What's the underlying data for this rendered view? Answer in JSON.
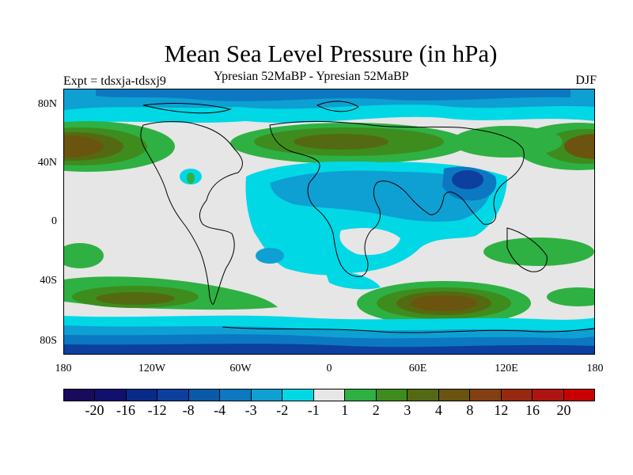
{
  "title": "Mean Sea Level Pressure (in hPa)",
  "subtitle": "Ypresian  52MaBP - Ypresian  52MaBP",
  "experiment": "Expt = tdsxja-tdsxj9",
  "season": "DJF",
  "lat_labels": [
    "80N",
    "40N",
    "0",
    "40S",
    "80S"
  ],
  "lon_labels": [
    "180",
    "120W",
    "60W",
    "0",
    "60E",
    "120E",
    "180"
  ],
  "colorbar": {
    "colors": [
      "#1a0a5e",
      "#10106e",
      "#0a2a8a",
      "#0c3f9e",
      "#0a5aaa",
      "#0c78c2",
      "#0ea0d2",
      "#00d8e6",
      "#e6e6e6",
      "#2fb042",
      "#3e8c1e",
      "#546a12",
      "#6b5410",
      "#844012",
      "#98280e",
      "#b01410",
      "#c80000"
    ],
    "labels": [
      "-20",
      "-16",
      "-12",
      "-8",
      "-4",
      "-3",
      "-2",
      "-1",
      "1",
      "2",
      "3",
      "4",
      "8",
      "12",
      "16",
      "20"
    ]
  },
  "palette": {
    "neutral": "#e6e6e6",
    "light_cyan": "#00d8e6",
    "mid_blue": "#0ea0d2",
    "blue": "#0c78c2",
    "dark_blue": "#0c3f9e",
    "green": "#2fb042",
    "dark_green": "#3e8c1e",
    "olive": "#546a12",
    "brown": "#6b5410"
  }
}
